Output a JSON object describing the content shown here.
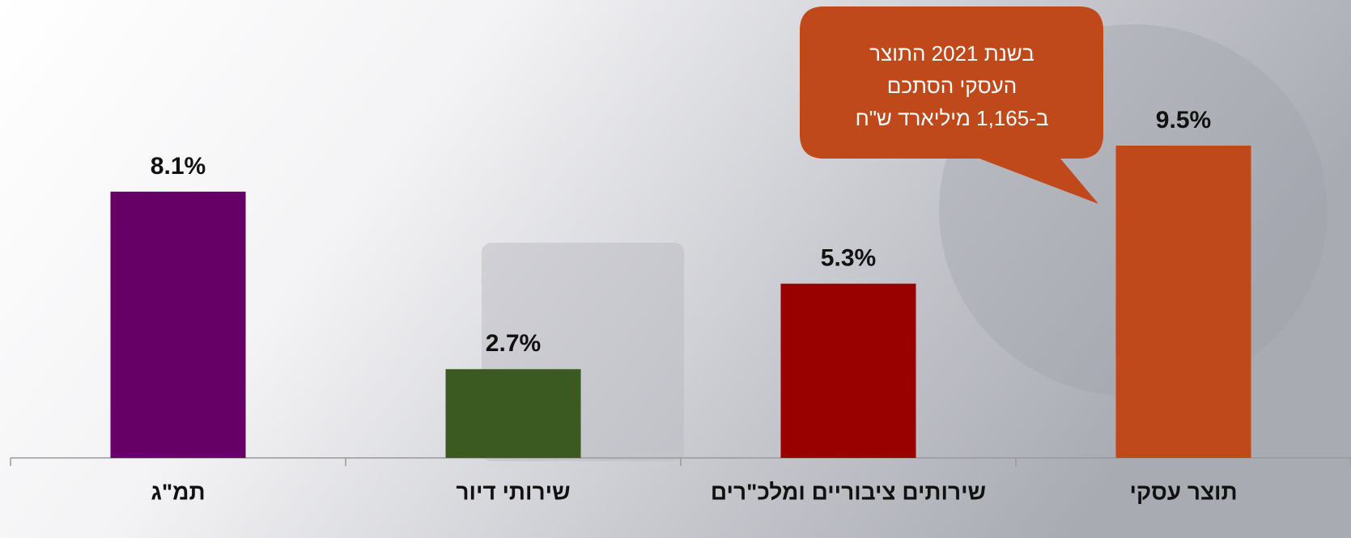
{
  "chart_data": {
    "type": "bar",
    "categories": [
      "תמ\"ג",
      "שירותי דיור",
      "שירותים ציבוריים ומלכ\"רים",
      "תוצר עסקי"
    ],
    "values": [
      8.1,
      2.7,
      5.3,
      9.5
    ],
    "value_labels": [
      "8.1%",
      "2.7%",
      "5.3%",
      "9.5%"
    ],
    "colors": [
      "#660066",
      "#3b5a22",
      "#990000",
      "#c0491c"
    ],
    "annotation": {
      "lines": [
        "בשנת 2021 התוצר",
        "העסקי הסתכם",
        "ב-1,165 מיליארד ש\"ח"
      ],
      "color": "#c0491c"
    }
  }
}
